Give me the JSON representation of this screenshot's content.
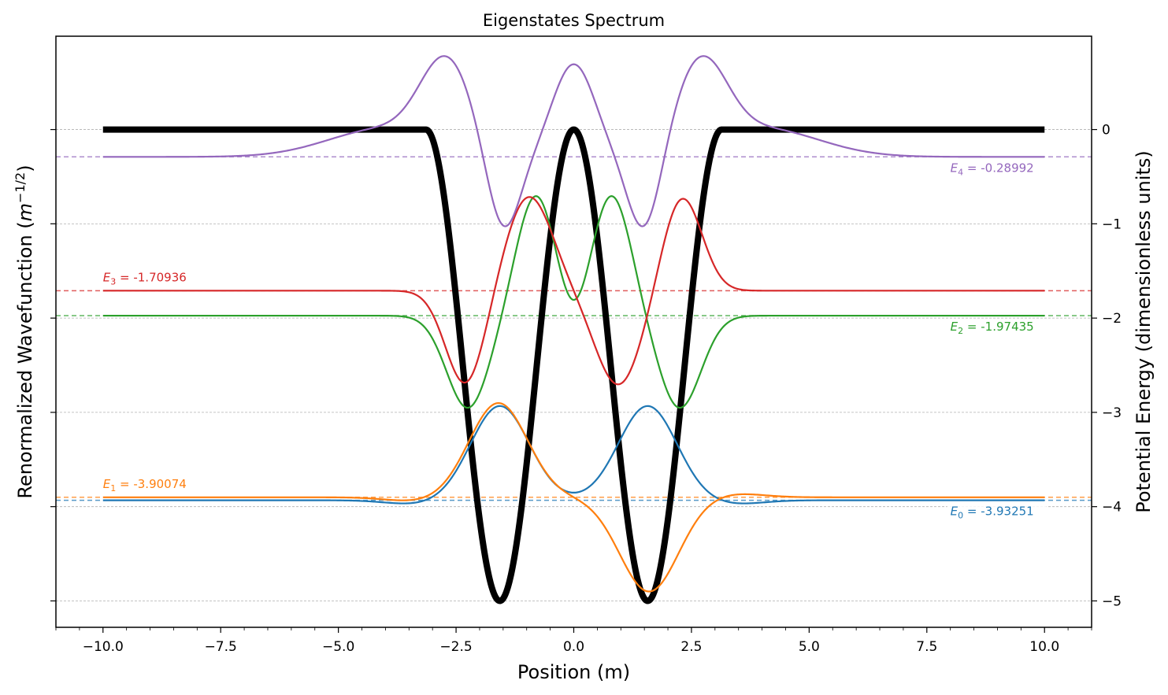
{
  "chart_data": {
    "type": "line",
    "title": "Eigenstates Spectrum",
    "xlabel": "Position (m)",
    "ylabel_left": "Renormalized Wavefunction (m^{-1/2})",
    "ylabel_right": "Potential Energy (dimensionless units)",
    "xlim": [
      -11,
      11
    ],
    "ylim": [
      -5.28,
      0.99
    ],
    "x_ticks": [
      -10,
      -7.5,
      -5,
      -2.5,
      0,
      2.5,
      5,
      7.5,
      10
    ],
    "x_tick_labels": [
      "−10.0",
      "−7.5",
      "−5.0",
      "−2.5",
      "0.0",
      "2.5",
      "5.0",
      "7.5",
      "10.0"
    ],
    "y_ticks": [
      0,
      -1,
      -2,
      -3,
      -4,
      -5
    ],
    "y_tick_labels": [
      "0",
      "−1",
      "−2",
      "−3",
      "−4",
      "−5"
    ],
    "grid": "horizontal dashed at y ticks",
    "potential": {
      "color": "#000000",
      "description_points": {
        "x": [
          -10,
          -3.1,
          -1.57,
          0,
          1.57,
          3.1,
          10
        ],
        "y": [
          0,
          0,
          -5,
          0,
          -5,
          0,
          0
        ]
      }
    },
    "series": [
      {
        "label_sub": "0",
        "energy": -3.93251,
        "energy_text": " = -3.93251",
        "color": "#1f77b4",
        "label_side": "right",
        "peaks": [
          {
            "x": -1.57,
            "y": -2.94
          },
          {
            "x": 1.57,
            "y": -2.94
          }
        ],
        "center_y": -3.75
      },
      {
        "label_sub": "1",
        "energy": -3.90074,
        "energy_text": " = -3.90074",
        "color": "#ff7f0e",
        "label_side": "left",
        "peaks": [
          {
            "x": -1.6,
            "y": -2.91
          },
          {
            "x": 1.6,
            "y": -4.92
          }
        ]
      },
      {
        "label_sub": "2",
        "energy": -1.97435,
        "energy_text": " = -1.97435",
        "color": "#2ca02c",
        "label_side": "right",
        "extrema": [
          {
            "x": -2.25,
            "y": -2.95
          },
          {
            "x": -0.8,
            "y": -0.98
          },
          {
            "x": 0,
            "y": -1.28
          },
          {
            "x": 0.8,
            "y": -0.98
          },
          {
            "x": 2.25,
            "y": -2.95
          }
        ]
      },
      {
        "label_sub": "3",
        "energy": -1.70936,
        "energy_text": " = -1.70936",
        "color": "#d62728",
        "label_side": "left",
        "extrema": [
          {
            "x": -2.3,
            "y": -2.71
          },
          {
            "x": -1.0,
            "y": -0.74
          },
          {
            "x": 1.0,
            "y": -2.69
          },
          {
            "x": 2.3,
            "y": -0.72
          }
        ]
      },
      {
        "label_sub": "4",
        "energy": -0.28992,
        "energy_text": " = -0.28992",
        "color": "#9467bd",
        "label_side": "right",
        "extrema": [
          {
            "x": -2.7,
            "y": 0.62
          },
          {
            "x": -1.5,
            "y": -1.06
          },
          {
            "x": 0,
            "y": 0.71
          },
          {
            "x": 1.5,
            "y": -1.06
          },
          {
            "x": 2.7,
            "y": 0.62
          }
        ]
      }
    ]
  }
}
